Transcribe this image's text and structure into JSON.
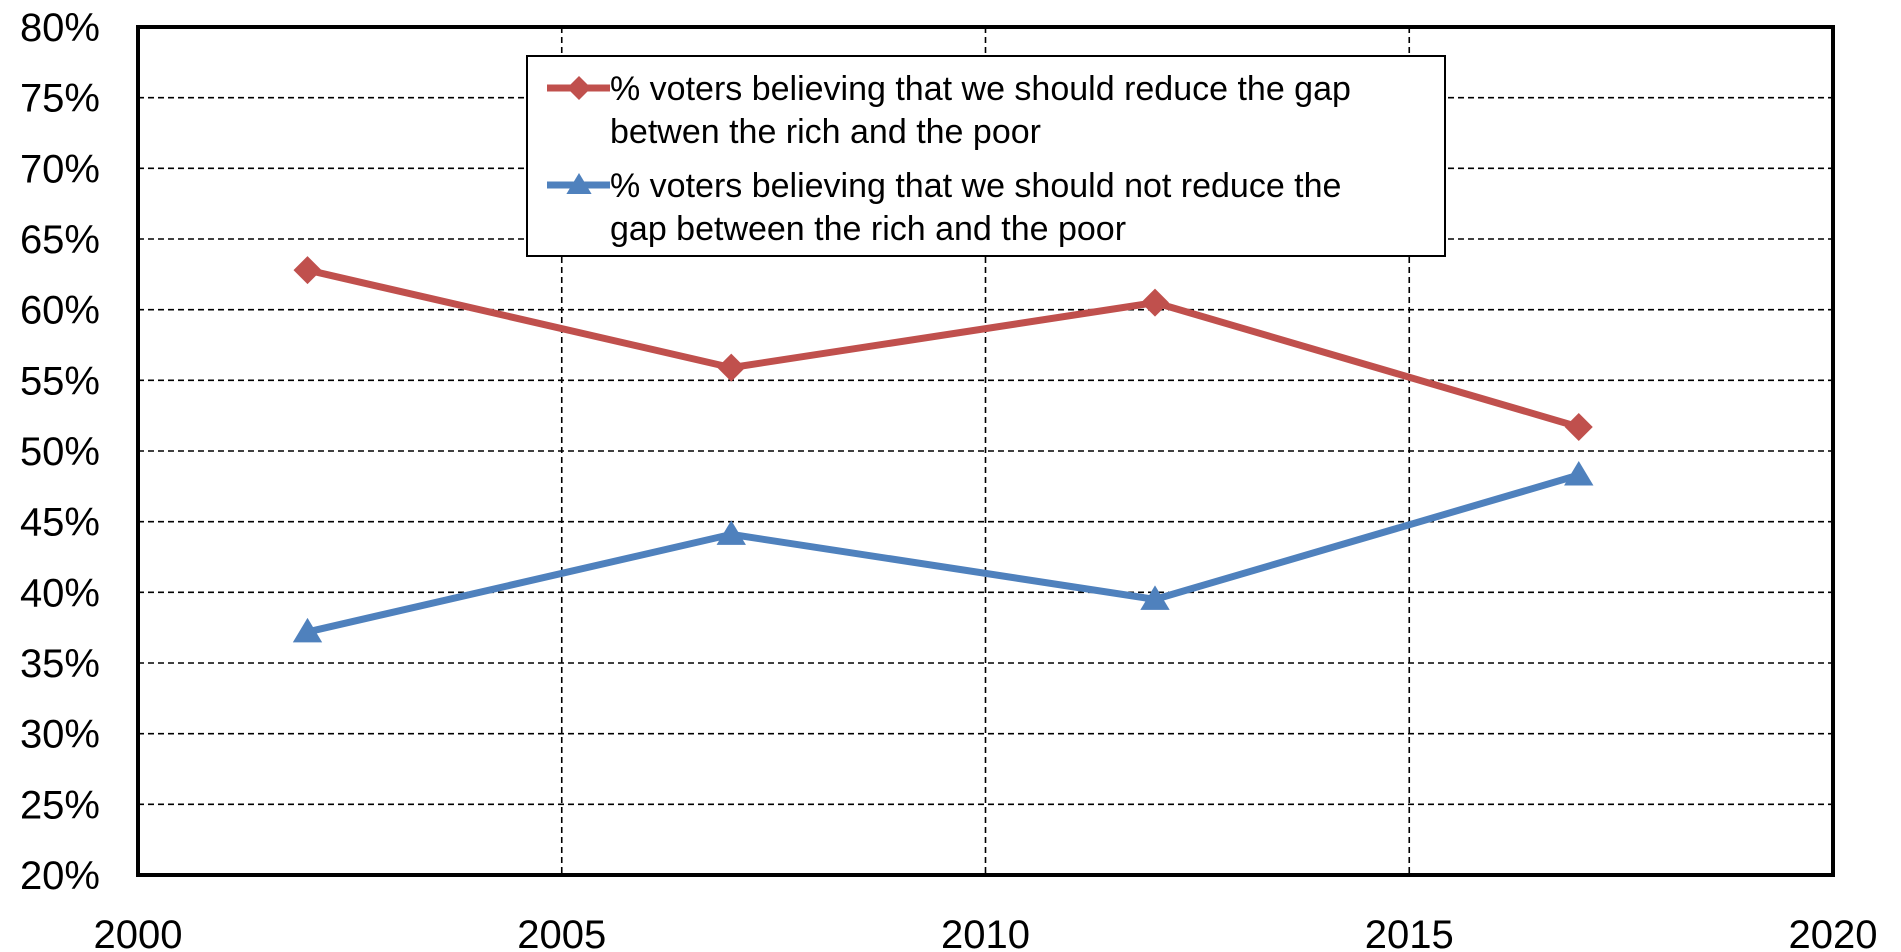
{
  "chart_data": {
    "type": "line",
    "title": "",
    "xlabel": "",
    "ylabel": "",
    "xlim": [
      2000,
      2020
    ],
    "ylim": [
      0.2,
      0.8
    ],
    "x_ticks": [
      2000,
      2005,
      2010,
      2015,
      2020
    ],
    "y_ticks": [
      0.2,
      0.25,
      0.3,
      0.35,
      0.4,
      0.45,
      0.5,
      0.55,
      0.6,
      0.65,
      0.7,
      0.75,
      0.8
    ],
    "grid": true,
    "legend_position": "top-center",
    "series": [
      {
        "name": "% voters believing that we should reduce the gap betwen the rich and the poor",
        "legend_lines": [
          "% voters believing that we should reduce the gap",
          "betwen the rich and the poor"
        ],
        "color": "#c0504d",
        "marker": "diamond",
        "x": [
          2002,
          2007,
          2012,
          2017
        ],
        "values": [
          0.628,
          0.559,
          0.605,
          0.517
        ]
      },
      {
        "name": "% voters believing that we should not reduce the gap between the rich and the poor",
        "legend_lines": [
          "% voters believing that we should not reduce the",
          "gap between the rich and the poor"
        ],
        "color": "#4f81bd",
        "marker": "triangle",
        "x": [
          2002,
          2007,
          2012,
          2017
        ],
        "values": [
          0.372,
          0.441,
          0.395,
          0.483
        ]
      }
    ]
  }
}
